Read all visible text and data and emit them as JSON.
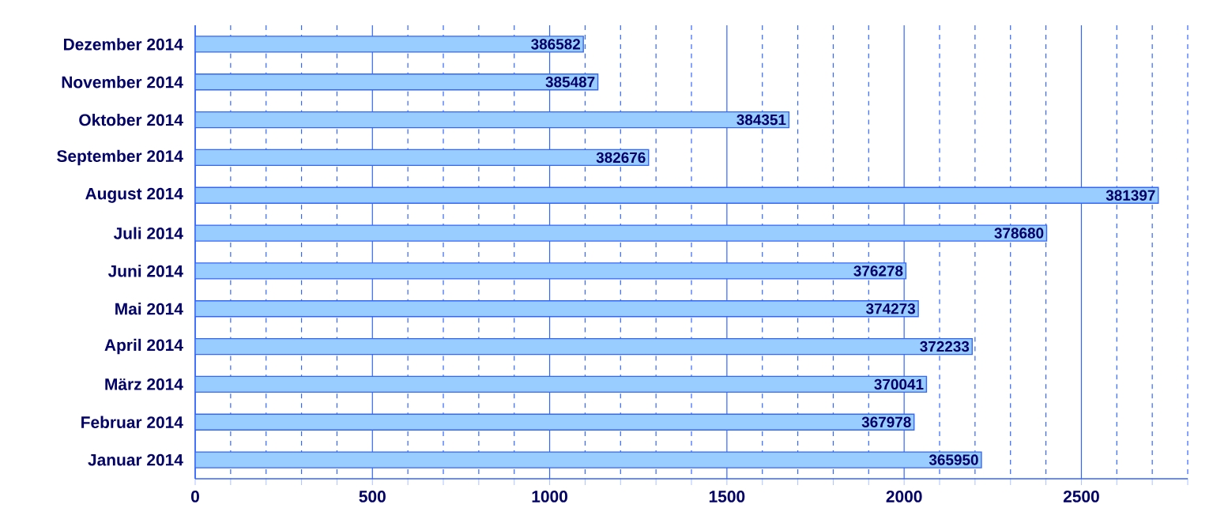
{
  "chart_data": {
    "type": "bar",
    "orientation": "horizontal",
    "categories": [
      "Dezember 2014",
      "November 2014",
      "Oktober 2014",
      "September 2014",
      "August 2014",
      "Juli 2014",
      "Juni 2014",
      "Mai 2014",
      "April 2014",
      "März 2014",
      "Februar 2014",
      "Januar 2014"
    ],
    "values": [
      1095,
      1136,
      1675,
      1279,
      2717,
      2402,
      2005,
      2040,
      2192,
      2063,
      2028,
      2218
    ],
    "color": "#99ccff",
    "annotations": [
      "386582",
      "385487",
      "384351",
      "382676",
      "381397",
      "378680",
      "376278",
      "374273",
      "372233",
      "370041",
      "367978",
      "365950"
    ],
    "xlim": [
      0,
      2800
    ],
    "xticks": [
      0,
      {
        "value": 100,
        "label": null
      },
      {
        "value": 200,
        "label": null
      },
      {
        "value": 300,
        "label": null
      },
      {
        "value": 400,
        "label": null
      },
      500,
      {
        "value": 600,
        "label": null
      },
      {
        "value": 700,
        "label": null
      },
      {
        "value": 800,
        "label": null
      },
      {
        "value": 900,
        "label": null
      },
      1000,
      {
        "value": 1100,
        "label": null
      },
      {
        "value": 1200,
        "label": null
      },
      {
        "value": 1300,
        "label": null
      },
      {
        "value": 1400,
        "label": null
      },
      1500,
      {
        "value": 1600,
        "label": null
      },
      {
        "value": 1700,
        "label": null
      },
      {
        "value": 1800,
        "label": null
      },
      {
        "value": 1900,
        "label": null
      },
      2000,
      {
        "value": 2100,
        "label": null
      },
      {
        "value": 2200,
        "label": null
      },
      {
        "value": 2300,
        "label": null
      },
      {
        "value": 2400,
        "label": null
      },
      2500,
      {
        "value": 2600,
        "label": null
      },
      {
        "value": 2700,
        "label": null
      },
      {
        "value": 2800,
        "label": null
      }
    ],
    "grid": "x"
  }
}
